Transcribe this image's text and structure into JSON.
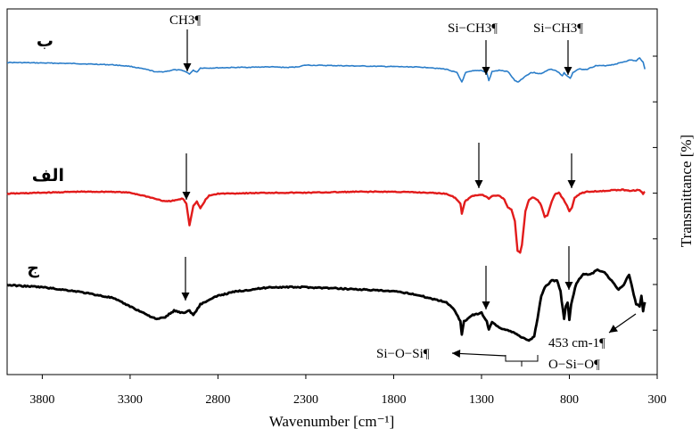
{
  "chart_data": {
    "type": "line",
    "xlabel": "Wavenumber [cm⁻¹]",
    "ylabel": "Transmittance [%]",
    "x_reversed": true,
    "xlim": [
      4000,
      300
    ],
    "x_ticks": [
      3800,
      3300,
      2800,
      2300,
      1800,
      1300,
      800,
      300
    ],
    "series": [
      {
        "name": "ب",
        "color": "#2a7dc9",
        "points": [
          [
            4000,
            0.62
          ],
          [
            3800,
            0.66
          ],
          [
            3600,
            0.72
          ],
          [
            3400,
            0.82
          ],
          [
            3300,
            0.95
          ],
          [
            3200,
            1.25
          ],
          [
            3150,
            1.45
          ],
          [
            3100,
            1.4
          ],
          [
            3050,
            1.25
          ],
          [
            3000,
            1.3
          ],
          [
            2962,
            1.6
          ],
          [
            2940,
            1.3
          ],
          [
            2920,
            1.45
          ],
          [
            2900,
            1.1
          ],
          [
            2850,
            1.1
          ],
          [
            2700,
            1.05
          ],
          [
            2500,
            1.0
          ],
          [
            2400,
            1.05
          ],
          [
            2350,
            1.0
          ],
          [
            2300,
            0.85
          ],
          [
            2100,
            0.9
          ],
          [
            1900,
            0.95
          ],
          [
            1700,
            1.0
          ],
          [
            1600,
            1.05
          ],
          [
            1500,
            1.2
          ],
          [
            1440,
            1.5
          ],
          [
            1412,
            2.3
          ],
          [
            1390,
            1.5
          ],
          [
            1350,
            1.35
          ],
          [
            1300,
            1.3
          ],
          [
            1270,
            1.5
          ],
          [
            1258,
            2.2
          ],
          [
            1240,
            1.4
          ],
          [
            1200,
            1.3
          ],
          [
            1150,
            1.4
          ],
          [
            1110,
            2.2
          ],
          [
            1090,
            2.3
          ],
          [
            1075,
            2.1
          ],
          [
            1050,
            1.8
          ],
          [
            1020,
            1.5
          ],
          [
            1000,
            1.5
          ],
          [
            960,
            1.6
          ],
          [
            940,
            1.4
          ],
          [
            910,
            1.2
          ],
          [
            880,
            1.3
          ],
          [
            860,
            1.5
          ],
          [
            840,
            1.8
          ],
          [
            830,
            1.5
          ],
          [
            810,
            1.8
          ],
          [
            795,
            2.0
          ],
          [
            780,
            1.5
          ],
          [
            750,
            1.2
          ],
          [
            700,
            1.2
          ],
          [
            650,
            0.9
          ],
          [
            600,
            0.9
          ],
          [
            550,
            0.8
          ],
          [
            500,
            0.6
          ],
          [
            450,
            0.4
          ],
          [
            420,
            0.5
          ],
          [
            400,
            0.2
          ],
          [
            380,
            0.6
          ],
          [
            370,
            1.2
          ]
        ]
      },
      {
        "name": "الف",
        "color": "#e21b1b",
        "points": [
          [
            4000,
            0.1
          ],
          [
            3800,
            0.05
          ],
          [
            3600,
            0.0
          ],
          [
            3400,
            0.0
          ],
          [
            3300,
            0.05
          ],
          [
            3200,
            0.25
          ],
          [
            3100,
            0.5
          ],
          [
            3050,
            0.45
          ],
          [
            3000,
            0.35
          ],
          [
            2980,
            0.6
          ],
          [
            2962,
            1.7
          ],
          [
            2940,
            0.7
          ],
          [
            2920,
            0.5
          ],
          [
            2900,
            0.85
          ],
          [
            2870,
            0.4
          ],
          [
            2850,
            0.2
          ],
          [
            2800,
            0.1
          ],
          [
            2500,
            0.05
          ],
          [
            2300,
            0.05
          ],
          [
            2000,
            0.0
          ],
          [
            1800,
            0.0
          ],
          [
            1600,
            0.05
          ],
          [
            1500,
            0.1
          ],
          [
            1450,
            0.3
          ],
          [
            1420,
            0.6
          ],
          [
            1412,
            1.1
          ],
          [
            1395,
            0.5
          ],
          [
            1350,
            0.2
          ],
          [
            1300,
            0.15
          ],
          [
            1270,
            0.25
          ],
          [
            1258,
            0.35
          ],
          [
            1240,
            0.2
          ],
          [
            1200,
            0.2
          ],
          [
            1170,
            0.4
          ],
          [
            1150,
            0.8
          ],
          [
            1130,
            0.9
          ],
          [
            1110,
            1.5
          ],
          [
            1095,
            3.0
          ],
          [
            1080,
            3.1
          ],
          [
            1070,
            2.7
          ],
          [
            1050,
            1.0
          ],
          [
            1030,
            0.4
          ],
          [
            1010,
            0.3
          ],
          [
            980,
            0.4
          ],
          [
            960,
            0.7
          ],
          [
            940,
            1.3
          ],
          [
            925,
            1.2
          ],
          [
            900,
            0.5
          ],
          [
            880,
            0.1
          ],
          [
            860,
            0.05
          ],
          [
            840,
            0.3
          ],
          [
            820,
            0.6
          ],
          [
            800,
            1.0
          ],
          [
            785,
            0.8
          ],
          [
            770,
            0.3
          ],
          [
            740,
            0.1
          ],
          [
            700,
            0.0
          ],
          [
            600,
            -0.05
          ],
          [
            500,
            -0.1
          ],
          [
            450,
            -0.05
          ],
          [
            400,
            -0.1
          ],
          [
            380,
            0.1
          ],
          [
            370,
            0.0
          ]
        ]
      },
      {
        "name": "ج",
        "color": "#000000",
        "points": [
          [
            4000,
            -0.05
          ],
          [
            3800,
            0.0
          ],
          [
            3600,
            0.1
          ],
          [
            3400,
            0.25
          ],
          [
            3300,
            0.45
          ],
          [
            3200,
            0.65
          ],
          [
            3150,
            0.75
          ],
          [
            3100,
            0.7
          ],
          [
            3050,
            0.55
          ],
          [
            3000,
            0.6
          ],
          [
            2962,
            0.55
          ],
          [
            2940,
            0.65
          ],
          [
            2900,
            0.4
          ],
          [
            2800,
            0.2
          ],
          [
            2700,
            0.1
          ],
          [
            2600,
            0.05
          ],
          [
            2500,
            0.0
          ],
          [
            2300,
            0.0
          ],
          [
            2000,
            0.05
          ],
          [
            1800,
            0.1
          ],
          [
            1700,
            0.15
          ],
          [
            1600,
            0.25
          ],
          [
            1500,
            0.35
          ],
          [
            1450,
            0.55
          ],
          [
            1420,
            0.8
          ],
          [
            1412,
            1.1
          ],
          [
            1400,
            0.8
          ],
          [
            1350,
            0.65
          ],
          [
            1300,
            0.6
          ],
          [
            1270,
            0.8
          ],
          [
            1258,
            1.0
          ],
          [
            1240,
            0.8
          ],
          [
            1200,
            0.95
          ],
          [
            1150,
            1.0
          ],
          [
            1100,
            1.1
          ],
          [
            1080,
            1.15
          ],
          [
            1050,
            1.2
          ],
          [
            1030,
            1.25
          ],
          [
            1000,
            1.15
          ],
          [
            980,
            0.7
          ],
          [
            960,
            0.2
          ],
          [
            940,
            0.0
          ],
          [
            900,
            -0.15
          ],
          [
            870,
            -0.15
          ],
          [
            850,
            0.1
          ],
          [
            830,
            0.75
          ],
          [
            820,
            0.45
          ],
          [
            810,
            0.35
          ],
          [
            800,
            0.75
          ],
          [
            790,
            0.4
          ],
          [
            760,
            -0.1
          ],
          [
            720,
            -0.3
          ],
          [
            680,
            -0.3
          ],
          [
            640,
            -0.4
          ],
          [
            600,
            -0.35
          ],
          [
            560,
            -0.15
          ],
          [
            520,
            0.05
          ],
          [
            490,
            -0.05
          ],
          [
            460,
            -0.3
          ],
          [
            440,
            0.05
          ],
          [
            420,
            0.4
          ],
          [
            400,
            0.45
          ],
          [
            390,
            0.2
          ],
          [
            380,
            0.55
          ],
          [
            370,
            0.35
          ]
        ]
      }
    ],
    "series_labels": [
      "ب",
      "الف",
      "ج"
    ],
    "annotations": [
      {
        "id": "ch3",
        "text": "CH3¶"
      },
      {
        "id": "sich3-left",
        "text": "Si−CH3¶"
      },
      {
        "id": "sich3-right",
        "text": "Si−CH3¶"
      },
      {
        "id": "sioSi",
        "text": "Si−O−Si¶"
      },
      {
        "id": "wn453",
        "text": "453 cm-1¶"
      },
      {
        "id": "osio",
        "text": "O−Si−O¶"
      }
    ]
  }
}
